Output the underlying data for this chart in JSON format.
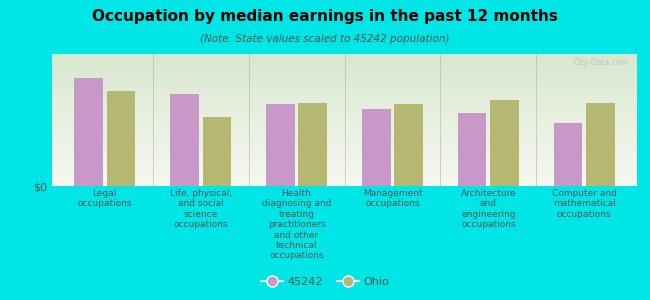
{
  "title": "Occupation by median earnings in the past 12 months",
  "subtitle": "(Note: State values scaled to 45242 population)",
  "background_color": "#00e5e5",
  "plot_bg_top": "#d8e8d0",
  "plot_bg_bottom": "#f0f5e8",
  "categories": [
    "Legal\noccupations",
    "Life, physical,\nand social\nscience\noccupations",
    "Health\ndiagnosing and\ntreating\npractitioners\nand other\ntechnical\noccupations",
    "Management\noccupations",
    "Architecture\nand\nengineering\noccupations",
    "Computer and\nmathematical\noccupations"
  ],
  "values_45242": [
    0.82,
    0.7,
    0.62,
    0.58,
    0.55,
    0.48
  ],
  "values_ohio": [
    0.72,
    0.52,
    0.63,
    0.62,
    0.65,
    0.63
  ],
  "color_45242": "#c899c8",
  "color_ohio": "#b4b870",
  "ylabel": "$0",
  "legend_labels": [
    "45242",
    "Ohio"
  ],
  "watermark": "City-Data.com"
}
